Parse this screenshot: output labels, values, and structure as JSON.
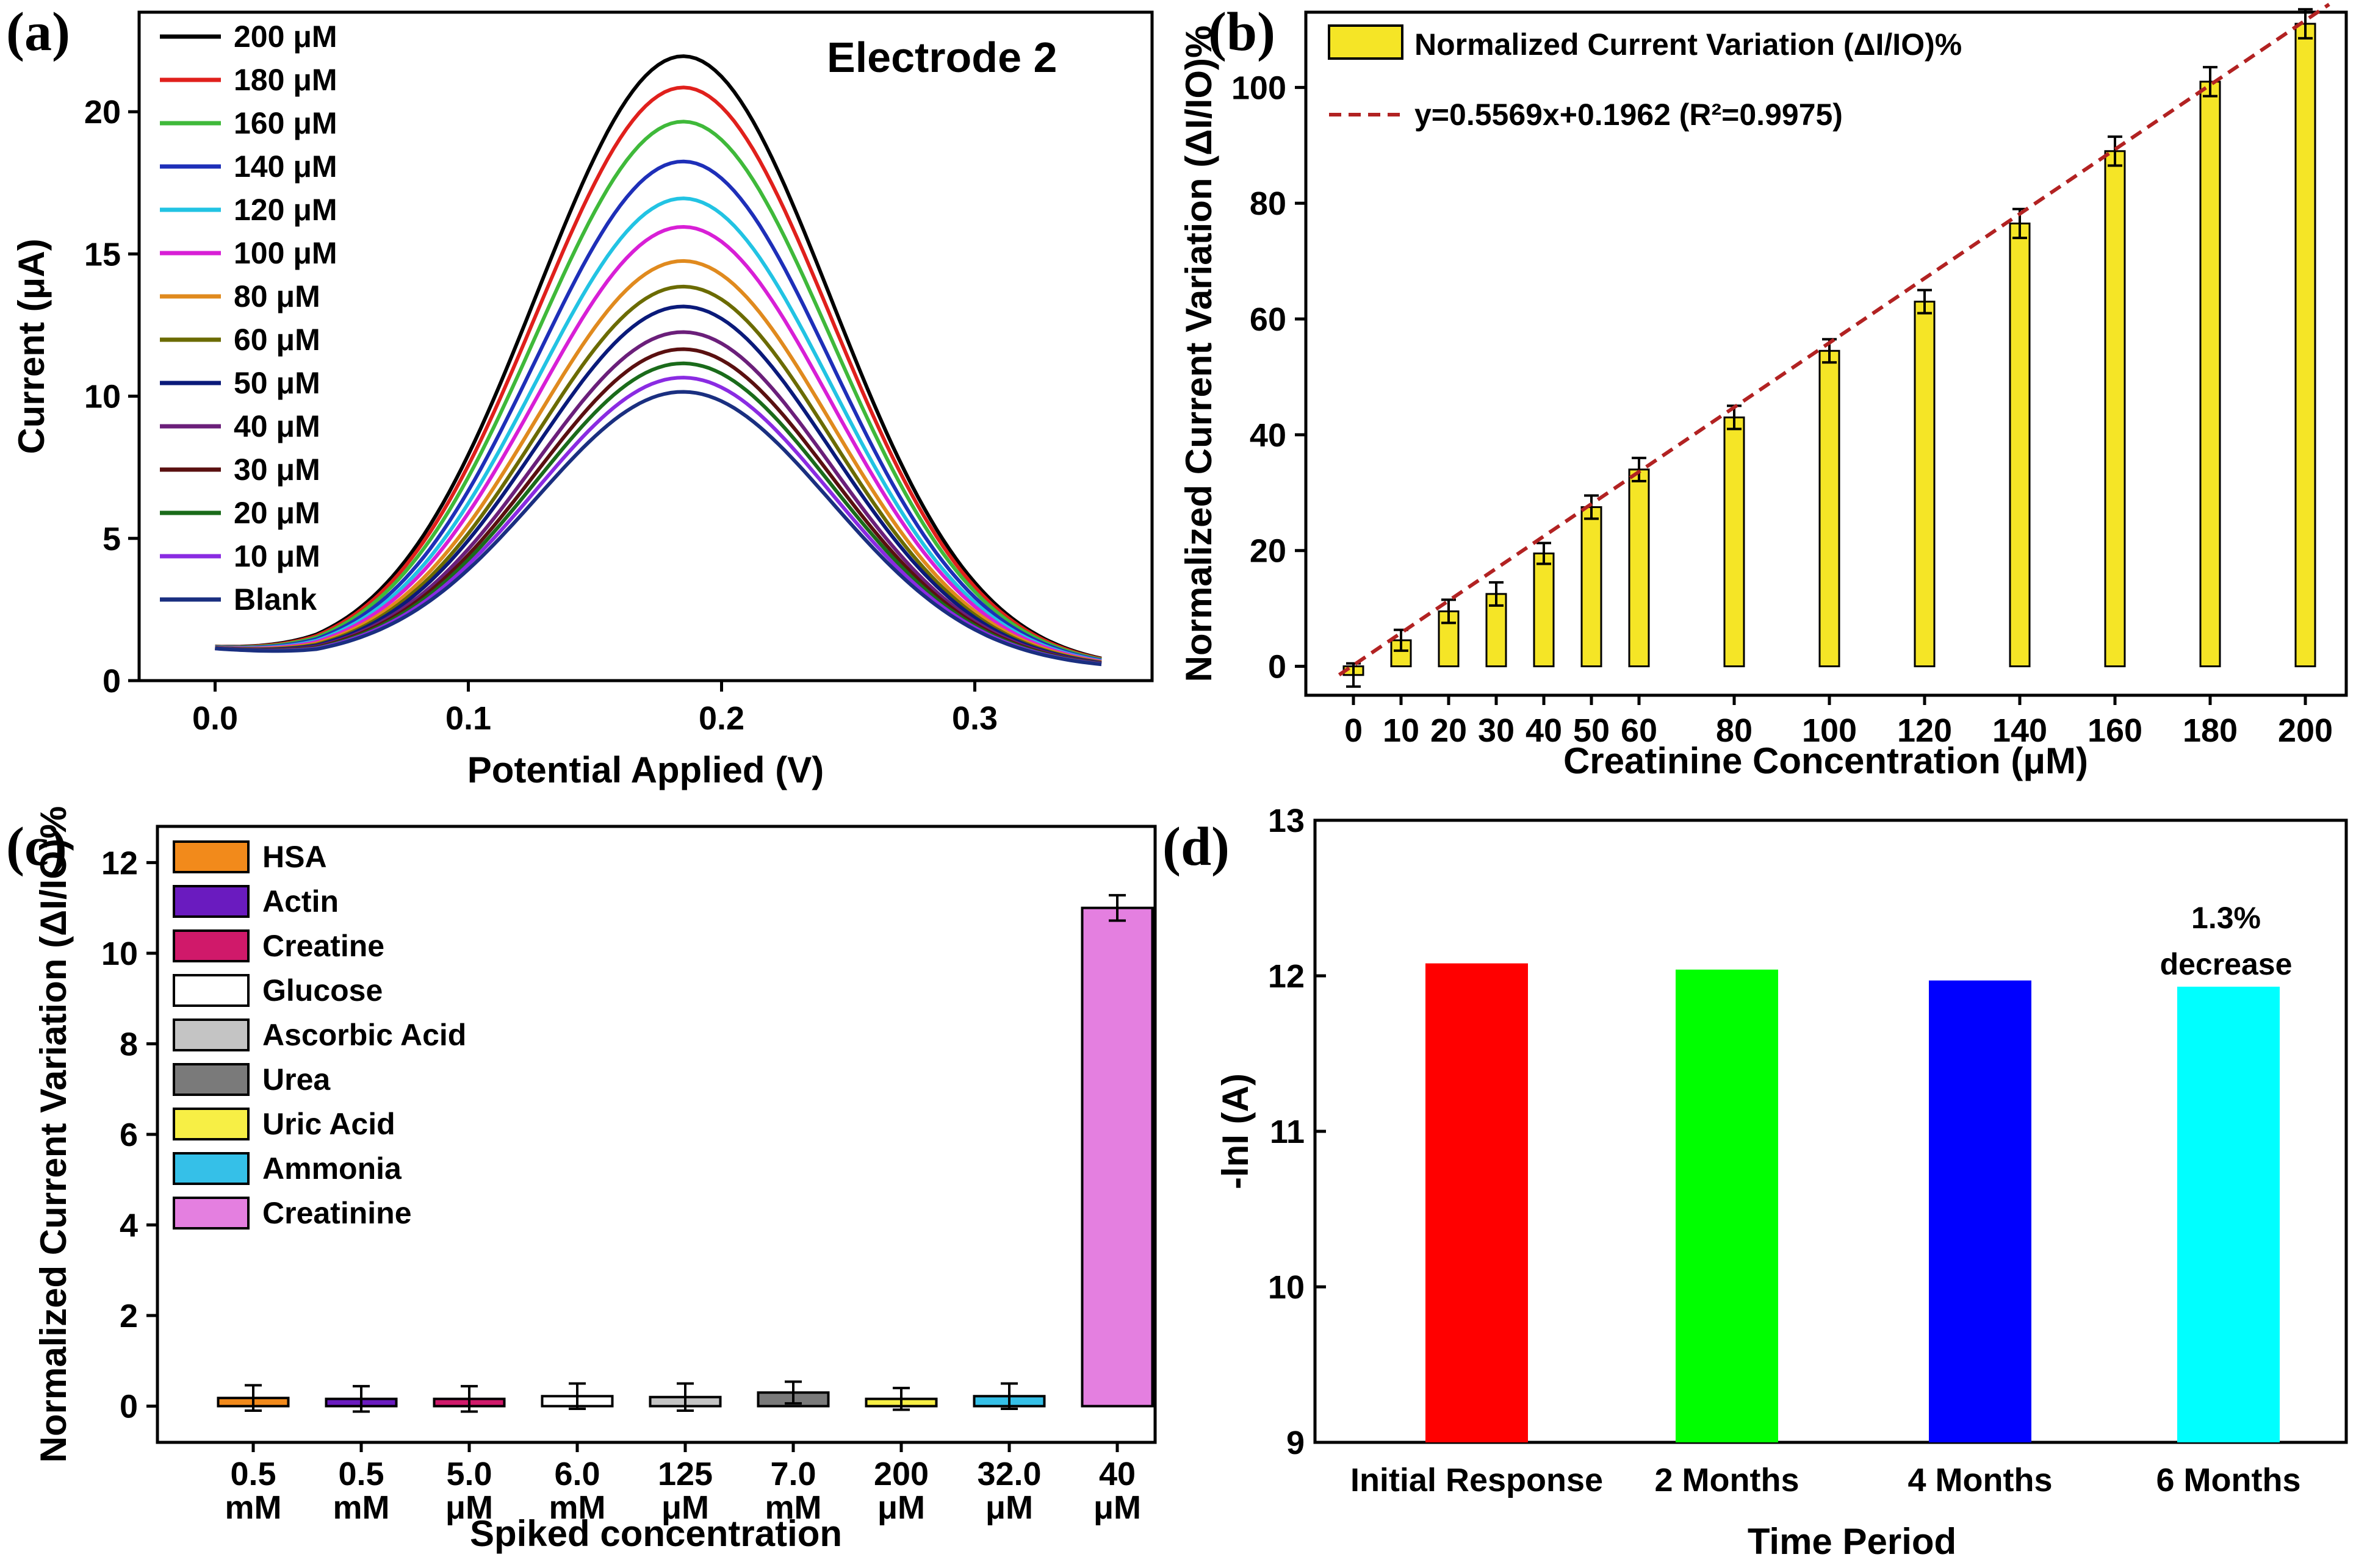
{
  "panels": {
    "a": {
      "letter": "(a)",
      "annotation": "Electrode 2",
      "chart_data": {
        "type": "line",
        "xlabel": "Potential Applied (V)",
        "ylabel": "Current (μA)",
        "xlim": [
          -0.03,
          0.37
        ],
        "ylim": [
          0,
          23.5
        ],
        "xticks": [
          "0.0",
          "0.1",
          "0.2",
          "0.3"
        ],
        "xtick_values": [
          0.0,
          0.1,
          0.2,
          0.3
        ],
        "yticks": [
          "0",
          "5",
          "10",
          "15",
          "20"
        ],
        "ytick_values": [
          0,
          5,
          10,
          15,
          20
        ],
        "legend_position": "top-left",
        "peak_potential": 0.185,
        "series": [
          {
            "name": "200 μM",
            "peak": 22.2,
            "color": "#000000"
          },
          {
            "name": "180 μM",
            "peak": 21.1,
            "color": "#e0201c"
          },
          {
            "name": "160 μM",
            "peak": 19.9,
            "color": "#3fb93a"
          },
          {
            "name": "140 μM",
            "peak": 18.5,
            "color": "#1e2fb8"
          },
          {
            "name": "120 μM",
            "peak": 17.2,
            "color": "#22c3e3"
          },
          {
            "name": "100 μM",
            "peak": 16.2,
            "color": "#d81fd6"
          },
          {
            "name": "80 μM",
            "peak": 15.0,
            "color": "#e08a1e"
          },
          {
            "name": "60 μM",
            "peak": 14.1,
            "color": "#6b6b00"
          },
          {
            "name": "50 μM",
            "peak": 13.4,
            "color": "#0a1a7a"
          },
          {
            "name": "40 μM",
            "peak": 12.5,
            "color": "#6b1f7a"
          },
          {
            "name": "30 μM",
            "peak": 11.9,
            "color": "#5a1010"
          },
          {
            "name": "20 μM",
            "peak": 11.4,
            "color": "#1a6b1a"
          },
          {
            "name": "10 μM",
            "peak": 10.9,
            "color": "#8a2be2"
          },
          {
            "name": "Blank",
            "peak": 10.4,
            "color": "#1a2f80"
          }
        ]
      }
    },
    "b": {
      "letter": "(b)",
      "chart_data": {
        "type": "bar",
        "xlabel": "Creatinine Concentration (μM)",
        "ylabel": "Normalized Current Variation (ΔI/IO)%",
        "ylim": [
          -5,
          113
        ],
        "yticks": [
          "0",
          "20",
          "40",
          "60",
          "80",
          "100"
        ],
        "ytick_values": [
          0,
          20,
          40,
          60,
          80,
          100
        ],
        "categories": [
          "0",
          "10",
          "20",
          "30",
          "40",
          "50",
          "60",
          "80",
          "100",
          "120",
          "140",
          "160",
          "180",
          "200"
        ],
        "x": [
          0,
          10,
          20,
          30,
          40,
          50,
          60,
          80,
          100,
          120,
          140,
          160,
          180,
          200
        ],
        "values": [
          -1.5,
          4.5,
          9.5,
          12.5,
          19.5,
          27.5,
          34,
          43,
          54.5,
          63,
          76.5,
          89,
          101,
          111
        ],
        "errors": [
          2,
          1.8,
          2,
          2,
          1.8,
          2,
          2,
          2,
          2,
          2,
          2.5,
          2.5,
          2.5,
          2.5
        ],
        "bar_color": "#f5e526",
        "legend_position": "top-left",
        "series_name": "Normalized Current Variation (ΔI/IO)%",
        "fit": {
          "label": "y=0.5569x+0.1962 (R²=0.9975)",
          "slope": 0.5569,
          "intercept": 0.1962,
          "color": "#b22222"
        }
      }
    },
    "c": {
      "letter": "(c)",
      "chart_data": {
        "type": "bar",
        "xlabel": "Spiked concentration",
        "ylabel": "Normalized Current Variation (ΔI/IO)%",
        "ylim": [
          -0.8,
          12.8
        ],
        "yticks": [
          "0",
          "2",
          "4",
          "6",
          "8",
          "10",
          "12"
        ],
        "ytick_values": [
          0,
          2,
          4,
          6,
          8,
          10,
          12
        ],
        "legend_position": "top-left",
        "bars": [
          {
            "name": "HSA",
            "conc": "0.5",
            "unit": "mM",
            "value": 0.18,
            "error": 0.28,
            "color": "#f28a1b"
          },
          {
            "name": "Actin",
            "conc": "0.5",
            "unit": "mM",
            "value": 0.16,
            "error": 0.28,
            "color": "#6a1bbf"
          },
          {
            "name": "Creatine",
            "conc": "5.0",
            "unit": "μM",
            "value": 0.16,
            "error": 0.28,
            "color": "#d0196a"
          },
          {
            "name": "Glucose",
            "conc": "6.0",
            "unit": "mM",
            "value": 0.22,
            "error": 0.28,
            "color": "#ffffff"
          },
          {
            "name": "Ascorbic Acid",
            "conc": "125",
            "unit": "μM",
            "value": 0.2,
            "error": 0.3,
            "color": "#c4c4c4"
          },
          {
            "name": "Urea",
            "conc": "7.0",
            "unit": "mM",
            "value": 0.3,
            "error": 0.24,
            "color": "#7a7a7a"
          },
          {
            "name": "Uric Acid",
            "conc": "200",
            "unit": "μM",
            "value": 0.16,
            "error": 0.24,
            "color": "#f7ef45"
          },
          {
            "name": "Ammonia",
            "conc": "32.0",
            "unit": "μM",
            "value": 0.22,
            "error": 0.28,
            "color": "#35c0e8"
          },
          {
            "name": "Creatinine",
            "conc": "40",
            "unit": "μM",
            "value": 11.0,
            "error": 0.28,
            "color": "#e47fe0"
          }
        ]
      }
    },
    "d": {
      "letter": "(d)",
      "annotation_line1": "1.3%",
      "annotation_line2": "decrease",
      "chart_data": {
        "type": "bar",
        "xlabel": "Time Period",
        "ylabel": "-lnI (A)",
        "ylim": [
          9,
          13
        ],
        "yticks": [
          "9",
          "10",
          "11",
          "12",
          "13"
        ],
        "ytick_values": [
          9,
          10,
          11,
          12,
          13
        ],
        "categories": [
          "Initial Response",
          "2 Months",
          "4 Months",
          "6 Months"
        ],
        "values": [
          12.08,
          12.04,
          11.97,
          11.93
        ],
        "colors": [
          "#ff0000",
          "#00ff00",
          "#0000ff",
          "#00ffff"
        ]
      }
    }
  }
}
